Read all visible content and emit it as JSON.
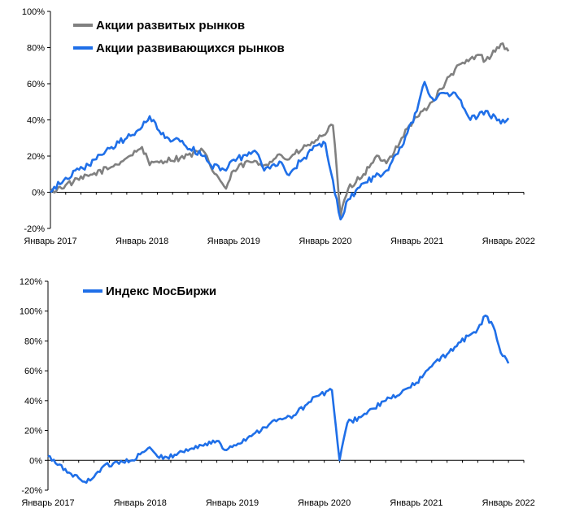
{
  "chart_data": [
    {
      "type": "line",
      "title": "",
      "xlabel": "",
      "ylabel": "",
      "x_ticks": [
        "Январь 2017",
        "Январь 2018",
        "Январь 2019",
        "Январь 2020",
        "Январь 2021",
        "Январь 2022"
      ],
      "y_ticks": [
        "-20%",
        "0%",
        "20%",
        "40%",
        "60%",
        "80%",
        "100%"
      ],
      "ylim": [
        -20,
        100
      ],
      "grid": false,
      "legend": "top-left",
      "series": [
        {
          "name": "Акции развитых рынков",
          "color": "#808080",
          "x": [
            "2017-01",
            "2017-03",
            "2017-06",
            "2017-09",
            "2017-11",
            "2018-01",
            "2018-02",
            "2018-03",
            "2018-06",
            "2018-09",
            "2018-10",
            "2018-12",
            "2019-01",
            "2019-03",
            "2019-05",
            "2019-07",
            "2019-08",
            "2019-10",
            "2019-12",
            "2020-02",
            "2020-03",
            "2020-04",
            "2020-06",
            "2020-08",
            "2020-09",
            "2020-11",
            "2020-12",
            "2021-03",
            "2021-06",
            "2021-09",
            "2021-10",
            "2021-12",
            "2022-01"
          ],
          "values": [
            0,
            4,
            9,
            14,
            19,
            25,
            15,
            17,
            19,
            23,
            14,
            2,
            12,
            17,
            15,
            21,
            18,
            24,
            29,
            37,
            -13,
            2,
            10,
            20,
            16,
            30,
            37,
            50,
            68,
            76,
            73,
            82,
            78
          ]
        },
        {
          "name": "Акции развивающихся рынков",
          "color": "#1f6fe8",
          "x": [
            "2017-01",
            "2017-03",
            "2017-06",
            "2017-09",
            "2017-11",
            "2018-01",
            "2018-02",
            "2018-04",
            "2018-06",
            "2018-09",
            "2018-10",
            "2018-12",
            "2019-01",
            "2019-04",
            "2019-05",
            "2019-07",
            "2019-08",
            "2019-10",
            "2019-12",
            "2020-01",
            "2020-03",
            "2020-04",
            "2020-06",
            "2020-09",
            "2020-11",
            "2021-01",
            "2021-02",
            "2021-03",
            "2021-06",
            "2021-08",
            "2021-10",
            "2021-12",
            "2022-01"
          ],
          "values": [
            0,
            8,
            15,
            25,
            30,
            36,
            42,
            30,
            28,
            20,
            15,
            12,
            18,
            22,
            12,
            17,
            10,
            18,
            26,
            27,
            -15,
            -4,
            5,
            12,
            25,
            45,
            61,
            52,
            55,
            40,
            45,
            38,
            41
          ]
        }
      ]
    },
    {
      "type": "line",
      "title": "",
      "xlabel": "",
      "ylabel": "",
      "x_ticks": [
        "Январь 2017",
        "Январь 2018",
        "Январь 2019",
        "Январь 2020",
        "Январь 2021",
        "Январь 2022"
      ],
      "y_ticks": [
        "-20%",
        "0%",
        "20%",
        "40%",
        "60%",
        "80%",
        "100%",
        "120%"
      ],
      "ylim": [
        -20,
        120
      ],
      "grid": false,
      "legend": "top-left",
      "series": [
        {
          "name": "Индекс МосБиржи",
          "color": "#1f6fe8",
          "x": [
            "2017-01",
            "2017-02",
            "2017-04",
            "2017-06",
            "2017-08",
            "2017-10",
            "2017-12",
            "2018-02",
            "2018-04",
            "2018-06",
            "2018-09",
            "2018-11",
            "2018-12",
            "2019-03",
            "2019-06",
            "2019-09",
            "2019-12",
            "2020-02",
            "2020-03",
            "2020-04",
            "2020-06",
            "2020-09",
            "2020-11",
            "2021-01",
            "2021-03",
            "2021-06",
            "2021-09",
            "2021-10",
            "2021-11",
            "2021-12",
            "2022-01"
          ],
          "values": [
            3,
            -2,
            -9,
            -15,
            -5,
            -1,
            0,
            8,
            1,
            5,
            10,
            13,
            7,
            15,
            25,
            30,
            43,
            47,
            0,
            25,
            30,
            40,
            45,
            52,
            63,
            76,
            88,
            97,
            90,
            72,
            65
          ]
        }
      ]
    }
  ]
}
